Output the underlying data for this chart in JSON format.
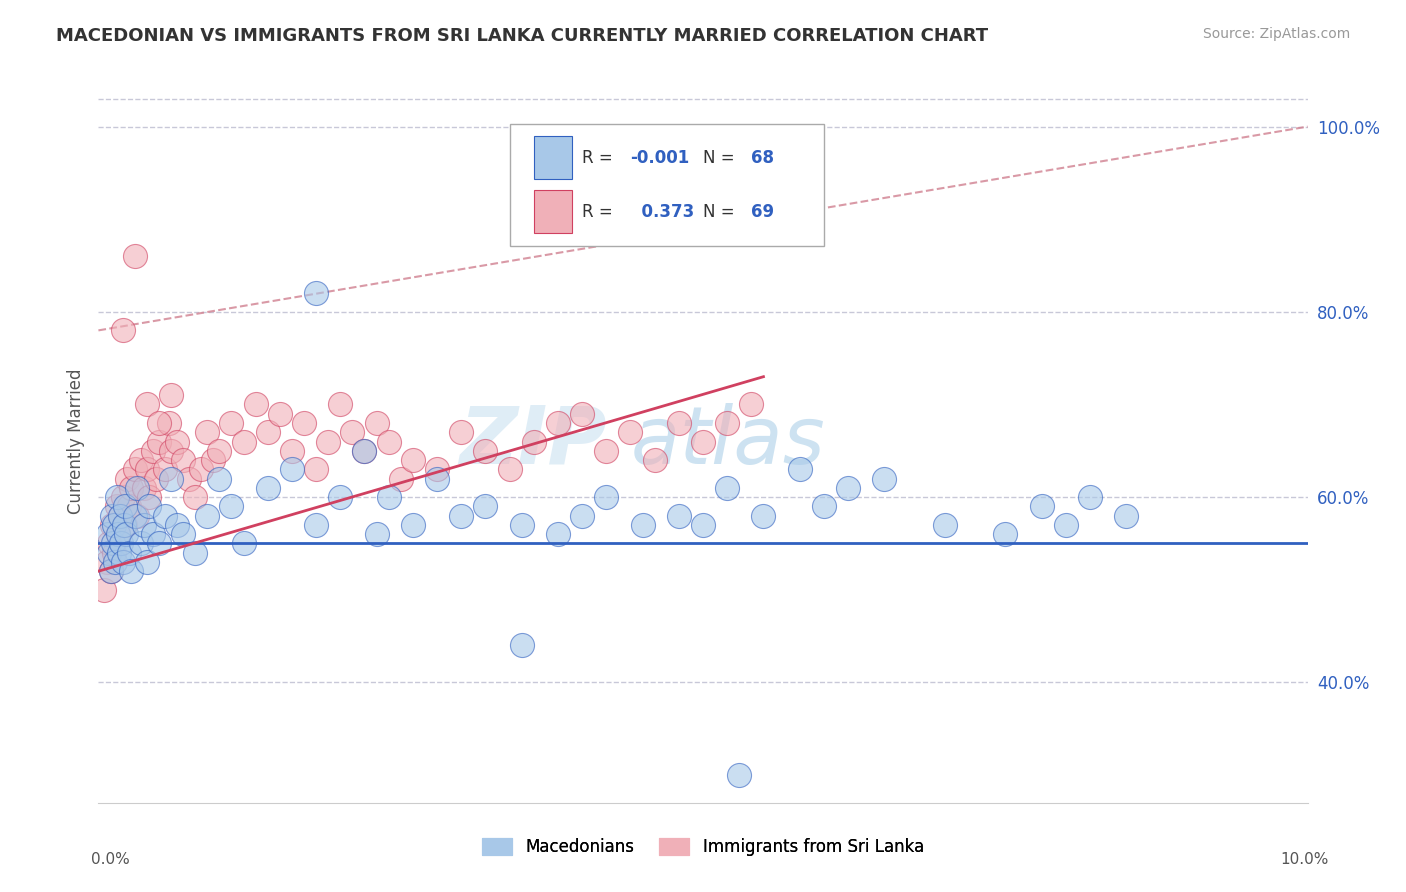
{
  "title": "MACEDONIAN VS IMMIGRANTS FROM SRI LANKA CURRENTLY MARRIED CORRELATION CHART",
  "source": "Source: ZipAtlas.com",
  "ylabel": "Currently Married",
  "xlim": [
    0.0,
    10.0
  ],
  "ylim": [
    27.0,
    105.0
  ],
  "yticks": [
    40.0,
    60.0,
    80.0,
    100.0
  ],
  "ytick_labels": [
    "40.0%",
    "60.0%",
    "80.0%",
    "100.0%"
  ],
  "color_blue": "#a8c8e8",
  "color_pink": "#f0b0b8",
  "color_blue_line": "#3060c0",
  "color_pink_line": "#d04060",
  "color_diag_line": "#d08090",
  "background_color": "#ffffff",
  "grid_color": "#c8c8d8",
  "watermark_zip": "ZIP",
  "watermark_atlas": "atlas",
  "blue_hline_y": 55.0,
  "pink_line_x0": 0.0,
  "pink_line_y0": 52.0,
  "pink_line_x1": 5.5,
  "pink_line_y1": 73.0,
  "diag_line_x0": 0.0,
  "diag_line_y0": 78.0,
  "diag_line_x1": 10.0,
  "diag_line_y1": 100.0,
  "mac_x": [
    0.08,
    0.09,
    0.1,
    0.11,
    0.12,
    0.13,
    0.14,
    0.15,
    0.16,
    0.17,
    0.18,
    0.19,
    0.2,
    0.21,
    0.22,
    0.23,
    0.25,
    0.27,
    0.3,
    0.32,
    0.35,
    0.38,
    0.4,
    0.42,
    0.45,
    0.5,
    0.55,
    0.6,
    0.65,
    0.7,
    0.8,
    0.9,
    1.0,
    1.1,
    1.2,
    1.4,
    1.6,
    1.8,
    2.0,
    2.2,
    2.4,
    2.6,
    2.8,
    3.0,
    3.2,
    3.5,
    3.8,
    4.0,
    4.2,
    4.5,
    4.8,
    5.0,
    5.2,
    5.5,
    5.8,
    6.0,
    6.2,
    6.5,
    7.0,
    7.5,
    7.8,
    8.0,
    8.2,
    8.5,
    5.3,
    3.5,
    1.8,
    2.3
  ],
  "mac_y": [
    56,
    54,
    52,
    58,
    55,
    57,
    53,
    60,
    56,
    54,
    58,
    55,
    53,
    57,
    59,
    56,
    54,
    52,
    58,
    61,
    55,
    57,
    53,
    59,
    56,
    55,
    58,
    62,
    57,
    56,
    54,
    58,
    62,
    59,
    55,
    61,
    63,
    57,
    60,
    65,
    60,
    57,
    62,
    58,
    59,
    57,
    56,
    58,
    60,
    57,
    58,
    57,
    61,
    58,
    63,
    59,
    61,
    62,
    57,
    56,
    59,
    57,
    60,
    58,
    30,
    44,
    82,
    56
  ],
  "sri_x": [
    0.05,
    0.07,
    0.09,
    0.1,
    0.11,
    0.13,
    0.15,
    0.16,
    0.18,
    0.2,
    0.22,
    0.24,
    0.25,
    0.27,
    0.3,
    0.32,
    0.35,
    0.38,
    0.4,
    0.42,
    0.45,
    0.48,
    0.5,
    0.55,
    0.58,
    0.6,
    0.65,
    0.7,
    0.75,
    0.8,
    0.85,
    0.9,
    0.95,
    1.0,
    1.1,
    1.2,
    1.3,
    1.4,
    1.5,
    1.6,
    1.7,
    1.8,
    1.9,
    2.0,
    2.1,
    2.2,
    2.3,
    2.4,
    2.5,
    2.6,
    2.8,
    3.0,
    3.2,
    3.4,
    3.6,
    3.8,
    4.0,
    4.2,
    4.4,
    4.6,
    4.8,
    5.0,
    5.2,
    5.4,
    0.3,
    0.2,
    0.4,
    0.5,
    0.6
  ],
  "sri_y": [
    50,
    53,
    55,
    52,
    57,
    54,
    59,
    56,
    58,
    60,
    57,
    62,
    59,
    61,
    63,
    58,
    64,
    61,
    63,
    60,
    65,
    62,
    66,
    63,
    68,
    65,
    66,
    64,
    62,
    60,
    63,
    67,
    64,
    65,
    68,
    66,
    70,
    67,
    69,
    65,
    68,
    63,
    66,
    70,
    67,
    65,
    68,
    66,
    62,
    64,
    63,
    67,
    65,
    63,
    66,
    68,
    69,
    65,
    67,
    64,
    68,
    66,
    68,
    70,
    86,
    78,
    70,
    68,
    71
  ]
}
